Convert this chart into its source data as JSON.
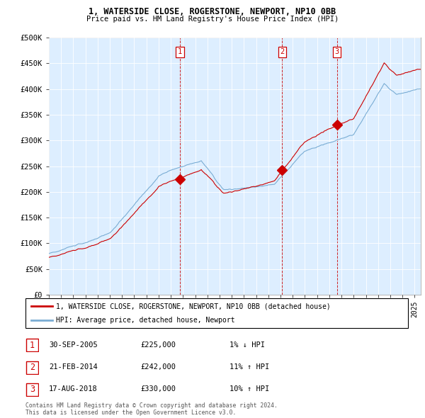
{
  "title1": "1, WATERSIDE CLOSE, ROGERSTONE, NEWPORT, NP10 0BB",
  "title2": "Price paid vs. HM Land Registry's House Price Index (HPI)",
  "ylabel_ticks": [
    "£0",
    "£50K",
    "£100K",
    "£150K",
    "£200K",
    "£250K",
    "£300K",
    "£350K",
    "£400K",
    "£450K",
    "£500K"
  ],
  "ytick_values": [
    0,
    50000,
    100000,
    150000,
    200000,
    250000,
    300000,
    350000,
    400000,
    450000,
    500000
  ],
  "hpi_color": "#7aadd4",
  "price_color": "#cc0000",
  "vline_color": "#cc0000",
  "chart_bg": "#ddeeff",
  "bg_color": "#ffffff",
  "grid_color": "#ffffff",
  "transactions": [
    {
      "num": 1,
      "date": "30-SEP-2005",
      "price": 225000,
      "pct": "1%",
      "dir": "↓",
      "x_year": 2005.75
    },
    {
      "num": 2,
      "date": "21-FEB-2014",
      "price": 242000,
      "pct": "11%",
      "dir": "↑",
      "x_year": 2014.13
    },
    {
      "num": 3,
      "date": "17-AUG-2018",
      "price": 330000,
      "pct": "10%",
      "dir": "↑",
      "x_year": 2018.63
    }
  ],
  "legend_label1": "1, WATERSIDE CLOSE, ROGERSTONE, NEWPORT, NP10 0BB (detached house)",
  "legend_label2": "HPI: Average price, detached house, Newport",
  "footnote1": "Contains HM Land Registry data © Crown copyright and database right 2024.",
  "footnote2": "This data is licensed under the Open Government Licence v3.0.",
  "xlim": [
    1995,
    2025.5
  ],
  "ylim": [
    0,
    500000
  ]
}
